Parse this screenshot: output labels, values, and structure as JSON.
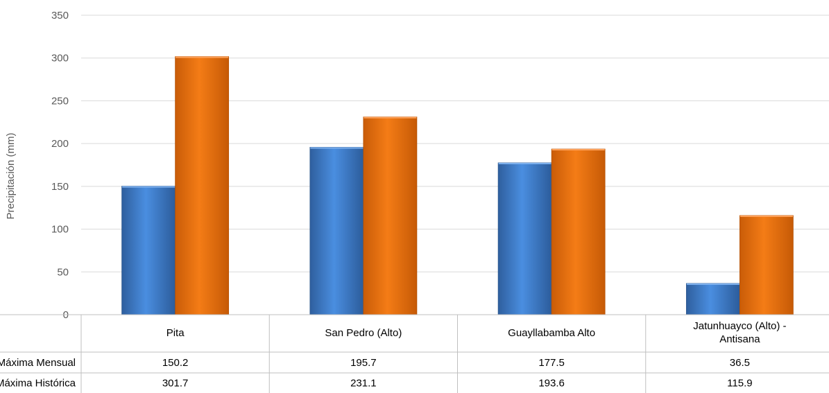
{
  "chart_data": {
    "type": "bar",
    "ylabel": "Precipitación (mm)",
    "ylim": [
      0,
      350
    ],
    "yticks": [
      0,
      50,
      100,
      150,
      200,
      250,
      300,
      350
    ],
    "categories": [
      "Pita",
      "San Pedro (Alto)",
      "Guayllabamba Alto",
      [
        "Jatunhuayco (Alto) -",
        "Antisana"
      ]
    ],
    "series": [
      {
        "name": "Precipitación Máxima Mensual",
        "color": "#3d7fd1",
        "values": [
          150.2,
          195.7,
          177.5,
          36.5
        ]
      },
      {
        "name": "Precipitación Máxima Histórica",
        "color": "#f0750f",
        "values": [
          301.7,
          231.1,
          193.6,
          115.9
        ]
      }
    ],
    "grid": true,
    "legend": "data-table"
  },
  "table": {
    "row_labels": [
      "Precipitación Máxima Mensual",
      "Precipitación Máxima Histórica"
    ],
    "rows": [
      [
        "150.2",
        "195.7",
        "177.5",
        "36.5"
      ],
      [
        "301.7",
        "231.1",
        "193.6",
        "115.9"
      ]
    ]
  }
}
